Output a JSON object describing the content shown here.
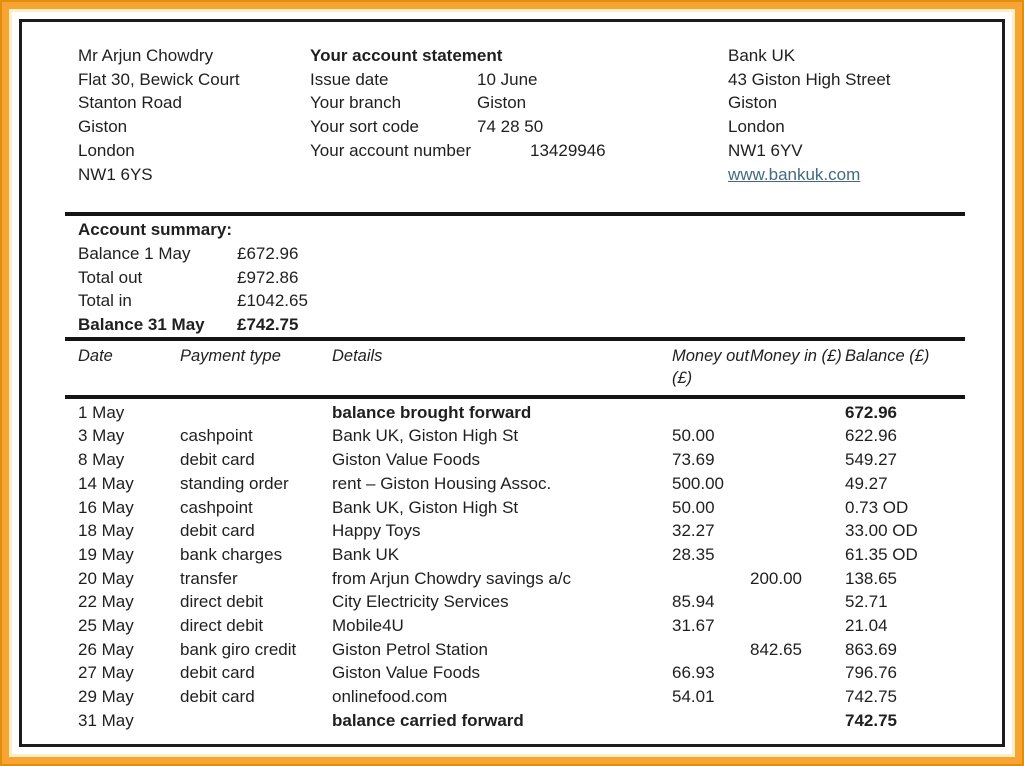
{
  "colors": {
    "frame": "#F7A433",
    "frame_edge_outer": "#E18E0F",
    "frame_edge_inner": "#FDF0C8",
    "rule": "#151515",
    "link": "#456A7F"
  },
  "recipient": {
    "lines": [
      "Mr Arjun Chowdry",
      "Flat 30, Bewick Court",
      "Stanton Road",
      "Giston",
      "London",
      "NW1 6YS"
    ]
  },
  "statement_info": {
    "title": "Your account statement",
    "rows": [
      {
        "label": "Issue date",
        "value": "10 June"
      },
      {
        "label": "Your branch",
        "value": "Giston"
      },
      {
        "label": "Your sort code",
        "value": "74 28 50"
      },
      {
        "label": "Your account number",
        "value": "13429946"
      }
    ]
  },
  "bank": {
    "lines": [
      "Bank UK",
      "43 Giston High Street",
      "Giston",
      "London",
      "NW1 6YV"
    ],
    "website": "www.bankuk.com"
  },
  "summary": {
    "title": "Account summary:",
    "rows": [
      {
        "label": "Balance 1 May",
        "value": "£672.96",
        "bold": false
      },
      {
        "label": "Total out",
        "value": "£972.86",
        "bold": false
      },
      {
        "label": "Total in",
        "value": "£1042.65",
        "bold": false
      },
      {
        "label": "Balance 31 May",
        "value": "£742.75",
        "bold": true
      }
    ]
  },
  "transactions": {
    "headers": [
      "Date",
      "Payment type",
      "Details",
      "Money out (£)",
      "Money in (£)",
      "Balance (£)"
    ],
    "rows": [
      {
        "date": "1 May",
        "type": "",
        "details": "balance brought forward",
        "out": "",
        "in": "",
        "balance": "672.96",
        "bold": true
      },
      {
        "date": "3 May",
        "type": "cashpoint",
        "details": "Bank UK, Giston High St",
        "out": "50.00",
        "in": "",
        "balance": "622.96",
        "bold": false
      },
      {
        "date": "8 May",
        "type": "debit card",
        "details": "Giston Value Foods",
        "out": "73.69",
        "in": "",
        "balance": "549.27",
        "bold": false
      },
      {
        "date": "14 May",
        "type": "standing order",
        "details": "rent – Giston Housing Assoc.",
        "out": "500.00",
        "in": "",
        "balance": "49.27",
        "bold": false
      },
      {
        "date": "16 May",
        "type": "cashpoint",
        "details": "Bank UK, Giston High St",
        "out": "50.00",
        "in": "",
        "balance": "0.73 OD",
        "bold": false
      },
      {
        "date": "18 May",
        "type": "debit card",
        "details": "Happy Toys",
        "out": "32.27",
        "in": "",
        "balance": "33.00 OD",
        "bold": false
      },
      {
        "date": "19 May",
        "type": "bank charges",
        "details": "Bank UK",
        "out": "28.35",
        "in": "",
        "balance": "61.35 OD",
        "bold": false
      },
      {
        "date": "20 May",
        "type": "transfer",
        "details": "from Arjun Chowdry savings a/c",
        "out": "",
        "in": "200.00",
        "balance": "138.65",
        "bold": false
      },
      {
        "date": "22 May",
        "type": "direct debit",
        "details": "City Electricity Services",
        "out": "85.94",
        "in": "",
        "balance": "52.71",
        "bold": false
      },
      {
        "date": "25 May",
        "type": "direct debit",
        "details": "Mobile4U",
        "out": "31.67",
        "in": "",
        "balance": "21.04",
        "bold": false
      },
      {
        "date": "26 May",
        "type": "bank giro credit",
        "details": "Giston Petrol Station",
        "out": "",
        "in": "842.65",
        "balance": "863.69",
        "bold": false
      },
      {
        "date": "27 May",
        "type": "debit card",
        "details": "Giston Value Foods",
        "out": "66.93",
        "in": "",
        "balance": "796.76",
        "bold": false
      },
      {
        "date": "29 May",
        "type": "debit card",
        "details": "onlinefood.com",
        "out": "54.01",
        "in": "",
        "balance": "742.75",
        "bold": false
      },
      {
        "date": "31 May",
        "type": "",
        "details": "balance carried forward",
        "out": "",
        "in": "",
        "balance": "742.75",
        "bold": true
      }
    ]
  }
}
